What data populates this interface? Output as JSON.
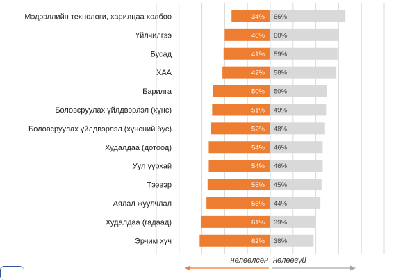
{
  "chart_data": {
    "type": "bar",
    "layout": "diverging-horizontal",
    "title": "",
    "categories": [
      "Мэдээллийн технологи, харилцаа холбоо",
      "Үйлчилгээ",
      "Бусад",
      "ХАА",
      "Барилга",
      "Боловсруулах үйлдвэрлэл (хүнс)",
      "Боловсруулах үйлдвэрлэл (хүнсний бус)",
      "Худалдаа (дотоод)",
      "Уул уурхай",
      "Тээвэр",
      "Аялал жуулчлал",
      "Худалдаа (гадаад)",
      "Эрчим хүч"
    ],
    "series": [
      {
        "name": "нөлөөлсөн",
        "color": "#ed7d31",
        "values": [
          34,
          40,
          41,
          42,
          50,
          51,
          52,
          54,
          54,
          55,
          56,
          61,
          62
        ],
        "labels": [
          "34%",
          "40%",
          "41%",
          "42%",
          "50%",
          "51%",
          "52%",
          "54%",
          "54%",
          "55%",
          "56%",
          "61%",
          "62%"
        ]
      },
      {
        "name": "нөлөөгүй",
        "color": "#d9d9d9",
        "values": [
          66,
          60,
          59,
          58,
          50,
          49,
          48,
          46,
          46,
          45,
          44,
          39,
          38
        ],
        "labels": [
          "66%",
          "60%",
          "59%",
          "58%",
          "50%",
          "49%",
          "48%",
          "46%",
          "46%",
          "45%",
          "44%",
          "39%",
          "38%"
        ]
      }
    ],
    "xlim": [
      -100,
      100
    ],
    "grid": true,
    "arrow_color": "#ed7d31",
    "arrow_color_right": "#a6a6a6",
    "axis_words": {
      "left": "нөлөөлсөн",
      "right": "нөлөөгүй"
    }
  }
}
